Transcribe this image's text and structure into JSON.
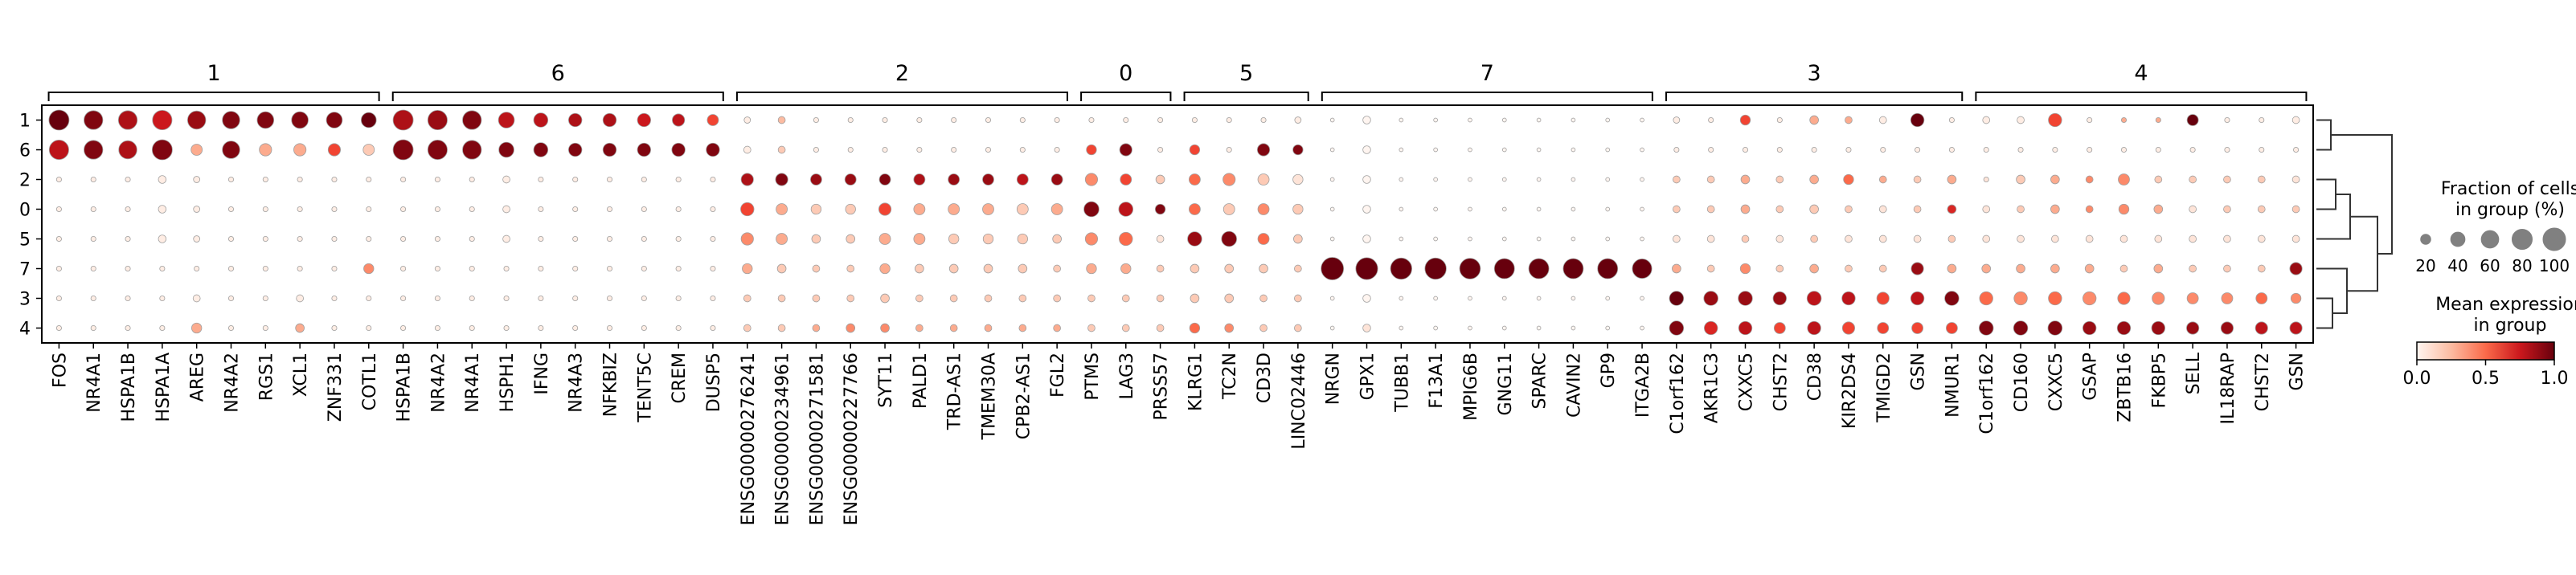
{
  "chart_data": {
    "type": "dotplot",
    "title": "",
    "rows": [
      "1",
      "6",
      "2",
      "0",
      "5",
      "7",
      "3",
      "4"
    ],
    "gene_groups": [
      {
        "label": "1",
        "genes": [
          "FOS",
          "NR4A1",
          "HSPA1B",
          "HSPA1A",
          "AREG",
          "NR4A2",
          "RGS1",
          "XCL1",
          "ZNF331",
          "COTL1"
        ]
      },
      {
        "label": "6",
        "genes": [
          "HSPA1B",
          "NR4A2",
          "NR4A1",
          "HSPH1",
          "IFNG",
          "NR4A3",
          "NFKBIZ",
          "TENT5C",
          "CREM",
          "DUSP5"
        ]
      },
      {
        "label": "2",
        "genes": [
          "ENSG00000276241",
          "ENSG00000234961",
          "ENSG00000271581",
          "ENSG00000227766",
          "SYT11",
          "PALD1",
          "TRD-AS1",
          "TMEM30A",
          "CPB2-AS1",
          "FGL2"
        ]
      },
      {
        "label": "0",
        "genes": [
          "PTMS",
          "LAG3",
          "PRSS57"
        ]
      },
      {
        "label": "5",
        "genes": [
          "KLRG1",
          "TC2N",
          "CD3D",
          "LINC02446"
        ]
      },
      {
        "label": "7",
        "genes": [
          "NRGN",
          "GPX1",
          "TUBB1",
          "F13A1",
          "MPIG6B",
          "GNG11",
          "SPARC",
          "CAVIN2",
          "GP9",
          "ITGA2B"
        ]
      },
      {
        "label": "3",
        "genes": [
          "C1orf162",
          "AKR1C3",
          "CXXC5",
          "CHST2",
          "CD38",
          "KIR2DS4",
          "TMIGD2",
          "GSN",
          "NMUR1"
        ]
      },
      {
        "label": "4",
        "genes": [
          "C1orf162",
          "CD160",
          "CXXC5",
          "GSAP",
          "ZBTB16",
          "FKBP5",
          "SELL",
          "IL18RAP",
          "CHST2",
          "GSN"
        ]
      }
    ],
    "fraction": [
      [
        80,
        70,
        70,
        75,
        65,
        60,
        55,
        55,
        50,
        45,
        80,
        75,
        70,
        50,
        40,
        35,
        35,
        35,
        30,
        25,
        8,
        10,
        5,
        5,
        5,
        5,
        5,
        5,
        5,
        5,
        5,
        5,
        5,
        5,
        5,
        5,
        8,
        3,
        12,
        3,
        3,
        3,
        3,
        3,
        3,
        3,
        3,
        8,
        5,
        20,
        5,
        15,
        10,
        10,
        35,
        5,
        10,
        10,
        35,
        5,
        5,
        5,
        25,
        5,
        5,
        10
      ],
      [
        75,
        70,
        65,
        80,
        25,
        60,
        30,
        30,
        30,
        25,
        80,
        75,
        70,
        45,
        40,
        35,
        35,
        35,
        35,
        35,
        10,
        10,
        5,
        5,
        5,
        5,
        5,
        5,
        5,
        5,
        20,
        30,
        5,
        20,
        5,
        30,
        20,
        3,
        12,
        3,
        3,
        3,
        3,
        3,
        3,
        3,
        3,
        5,
        5,
        5,
        5,
        5,
        5,
        5,
        5,
        5,
        5,
        5,
        5,
        5,
        5,
        5,
        5,
        5,
        5,
        5
      ],
      [
        5,
        5,
        5,
        12,
        8,
        5,
        5,
        5,
        5,
        5,
        5,
        5,
        5,
        10,
        5,
        5,
        5,
        5,
        5,
        5,
        30,
        30,
        25,
        25,
        25,
        25,
        25,
        25,
        25,
        25,
        30,
        25,
        15,
        25,
        30,
        25,
        20,
        3,
        12,
        3,
        3,
        3,
        3,
        3,
        3,
        3,
        3,
        10,
        10,
        15,
        10,
        15,
        20,
        10,
        10,
        15,
        5,
        15,
        15,
        10,
        25,
        10,
        10,
        10,
        10,
        10
      ],
      [
        5,
        5,
        5,
        12,
        8,
        5,
        5,
        5,
        5,
        5,
        5,
        5,
        5,
        10,
        5,
        5,
        5,
        5,
        5,
        5,
        35,
        25,
        20,
        20,
        30,
        25,
        25,
        25,
        25,
        25,
        45,
        40,
        20,
        25,
        25,
        25,
        20,
        3,
        12,
        3,
        3,
        3,
        3,
        3,
        3,
        3,
        3,
        10,
        10,
        15,
        10,
        15,
        10,
        10,
        10,
        15,
        10,
        10,
        15,
        10,
        20,
        15,
        10,
        10,
        10,
        10
      ],
      [
        5,
        5,
        5,
        12,
        8,
        5,
        5,
        5,
        5,
        5,
        5,
        5,
        5,
        10,
        5,
        5,
        5,
        5,
        5,
        5,
        30,
        25,
        15,
        15,
        25,
        25,
        20,
        20,
        20,
        15,
        30,
        35,
        10,
        40,
        45,
        25,
        15,
        3,
        12,
        3,
        3,
        3,
        3,
        3,
        3,
        3,
        3,
        10,
        10,
        10,
        10,
        10,
        10,
        10,
        10,
        10,
        10,
        10,
        10,
        10,
        10,
        10,
        10,
        10,
        10,
        10
      ],
      [
        5,
        5,
        5,
        5,
        5,
        5,
        5,
        5,
        5,
        20,
        5,
        5,
        5,
        5,
        5,
        5,
        5,
        5,
        5,
        5,
        20,
        15,
        10,
        10,
        20,
        15,
        15,
        15,
        15,
        10,
        20,
        20,
        10,
        15,
        15,
        15,
        10,
        100,
        95,
        90,
        90,
        85,
        80,
        80,
        80,
        80,
        75,
        15,
        10,
        20,
        10,
        15,
        10,
        10,
        30,
        15,
        15,
        15,
        15,
        15,
        10,
        15,
        10,
        10,
        10,
        30
      ],
      [
        5,
        5,
        5,
        5,
        10,
        5,
        5,
        10,
        5,
        5,
        5,
        5,
        5,
        5,
        5,
        5,
        5,
        5,
        5,
        5,
        10,
        10,
        10,
        10,
        15,
        10,
        10,
        10,
        10,
        10,
        10,
        10,
        10,
        15,
        15,
        10,
        10,
        3,
        12,
        3,
        3,
        3,
        3,
        3,
        3,
        3,
        3,
        40,
        40,
        40,
        35,
        40,
        35,
        30,
        35,
        40,
        35,
        35,
        35,
        35,
        30,
        30,
        25,
        25,
        25,
        20
      ],
      [
        5,
        5,
        5,
        5,
        20,
        5,
        5,
        15,
        5,
        5,
        5,
        5,
        5,
        5,
        5,
        5,
        5,
        5,
        5,
        5,
        10,
        10,
        10,
        15,
        15,
        10,
        10,
        10,
        10,
        10,
        10,
        10,
        10,
        20,
        15,
        10,
        10,
        3,
        12,
        3,
        3,
        3,
        3,
        3,
        3,
        3,
        3,
        40,
        35,
        35,
        25,
        35,
        30,
        25,
        25,
        25,
        40,
        40,
        40,
        35,
        35,
        35,
        30,
        30,
        30,
        30
      ]
    ],
    "expression": [
      [
        1.0,
        0.95,
        0.85,
        0.75,
        0.9,
        0.95,
        0.95,
        0.95,
        0.95,
        1.0,
        0.85,
        0.9,
        0.95,
        0.8,
        0.8,
        0.85,
        0.85,
        0.75,
        0.8,
        0.6,
        0.05,
        0.25,
        0.05,
        0.05,
        0.05,
        0.05,
        0.05,
        0.05,
        0.05,
        0.05,
        0.05,
        0.05,
        0.05,
        0.05,
        0.05,
        0.05,
        0.05,
        0.0,
        0.0,
        0.0,
        0.0,
        0.0,
        0.0,
        0.0,
        0.0,
        0.0,
        0.0,
        0.05,
        0.05,
        0.6,
        0.05,
        0.3,
        0.3,
        0.05,
        1.0,
        0.05,
        0.05,
        0.05,
        0.6,
        0.05,
        0.3,
        0.3,
        1.0,
        0.05,
        0.05,
        0.05
      ],
      [
        0.8,
        0.95,
        0.85,
        0.95,
        0.3,
        0.95,
        0.3,
        0.3,
        0.6,
        0.2,
        0.95,
        0.95,
        0.95,
        0.95,
        0.95,
        0.95,
        0.95,
        0.95,
        0.95,
        0.95,
        0.05,
        0.2,
        0.05,
        0.05,
        0.05,
        0.05,
        0.05,
        0.05,
        0.05,
        0.05,
        0.6,
        0.95,
        0.05,
        0.6,
        0.05,
        0.95,
        0.95,
        0.0,
        0.0,
        0.0,
        0.0,
        0.0,
        0.0,
        0.0,
        0.0,
        0.0,
        0.0,
        0.05,
        0.05,
        0.05,
        0.05,
        0.05,
        0.05,
        0.05,
        0.05,
        0.05,
        0.05,
        0.05,
        0.05,
        0.05,
        0.05,
        0.05,
        0.05,
        0.05,
        0.05,
        0.05
      ],
      [
        0.05,
        0.05,
        0.05,
        0.05,
        0.05,
        0.05,
        0.05,
        0.05,
        0.05,
        0.05,
        0.05,
        0.05,
        0.05,
        0.05,
        0.05,
        0.05,
        0.05,
        0.05,
        0.05,
        0.05,
        0.85,
        0.95,
        0.9,
        0.9,
        0.95,
        0.85,
        0.9,
        0.9,
        0.8,
        0.9,
        0.4,
        0.6,
        0.2,
        0.5,
        0.4,
        0.2,
        0.1,
        0.0,
        0.0,
        0.0,
        0.0,
        0.0,
        0.0,
        0.0,
        0.0,
        0.0,
        0.0,
        0.2,
        0.2,
        0.3,
        0.2,
        0.3,
        0.5,
        0.3,
        0.2,
        0.3,
        0.1,
        0.2,
        0.3,
        0.4,
        0.4,
        0.2,
        0.2,
        0.2,
        0.2,
        0.1
      ],
      [
        0.05,
        0.05,
        0.05,
        0.05,
        0.05,
        0.05,
        0.05,
        0.05,
        0.05,
        0.05,
        0.05,
        0.05,
        0.05,
        0.05,
        0.05,
        0.05,
        0.05,
        0.05,
        0.05,
        0.05,
        0.6,
        0.3,
        0.2,
        0.2,
        0.6,
        0.3,
        0.3,
        0.3,
        0.2,
        0.3,
        0.95,
        0.8,
        0.95,
        0.5,
        0.2,
        0.4,
        0.2,
        0.0,
        0.0,
        0.0,
        0.0,
        0.0,
        0.0,
        0.0,
        0.0,
        0.0,
        0.0,
        0.2,
        0.2,
        0.3,
        0.2,
        0.2,
        0.2,
        0.1,
        0.2,
        0.7,
        0.1,
        0.2,
        0.3,
        0.4,
        0.4,
        0.3,
        0.1,
        0.2,
        0.2,
        0.2
      ],
      [
        0.05,
        0.05,
        0.05,
        0.05,
        0.05,
        0.05,
        0.05,
        0.05,
        0.05,
        0.05,
        0.05,
        0.05,
        0.05,
        0.05,
        0.05,
        0.05,
        0.05,
        0.05,
        0.05,
        0.05,
        0.4,
        0.3,
        0.2,
        0.2,
        0.3,
        0.3,
        0.2,
        0.2,
        0.2,
        0.2,
        0.4,
        0.5,
        0.1,
        0.9,
        0.95,
        0.5,
        0.2,
        0.0,
        0.0,
        0.0,
        0.0,
        0.0,
        0.0,
        0.0,
        0.0,
        0.0,
        0.0,
        0.1,
        0.1,
        0.2,
        0.1,
        0.2,
        0.1,
        0.1,
        0.1,
        0.2,
        0.1,
        0.1,
        0.1,
        0.1,
        0.1,
        0.1,
        0.1,
        0.1,
        0.1,
        0.1
      ],
      [
        0.05,
        0.05,
        0.05,
        0.05,
        0.05,
        0.05,
        0.05,
        0.05,
        0.05,
        0.4,
        0.05,
        0.05,
        0.05,
        0.05,
        0.05,
        0.05,
        0.05,
        0.05,
        0.05,
        0.05,
        0.3,
        0.2,
        0.2,
        0.2,
        0.3,
        0.2,
        0.2,
        0.2,
        0.2,
        0.2,
        0.3,
        0.3,
        0.2,
        0.2,
        0.2,
        0.2,
        0.2,
        1.0,
        1.0,
        1.0,
        1.0,
        1.0,
        1.0,
        1.0,
        1.0,
        1.0,
        1.0,
        0.3,
        0.2,
        0.4,
        0.2,
        0.3,
        0.2,
        0.2,
        0.9,
        0.3,
        0.3,
        0.3,
        0.3,
        0.3,
        0.2,
        0.3,
        0.2,
        0.2,
        0.2,
        0.9
      ],
      [
        0.05,
        0.05,
        0.05,
        0.05,
        0.05,
        0.05,
        0.05,
        0.05,
        0.05,
        0.05,
        0.05,
        0.05,
        0.05,
        0.05,
        0.05,
        0.05,
        0.05,
        0.05,
        0.05,
        0.05,
        0.2,
        0.2,
        0.2,
        0.2,
        0.2,
        0.2,
        0.2,
        0.2,
        0.2,
        0.2,
        0.2,
        0.2,
        0.2,
        0.2,
        0.2,
        0.2,
        0.2,
        0.0,
        0.0,
        0.0,
        0.0,
        0.0,
        0.0,
        0.0,
        0.0,
        0.0,
        0.0,
        1.0,
        0.9,
        0.9,
        0.9,
        0.8,
        0.8,
        0.6,
        0.8,
        0.95,
        0.5,
        0.4,
        0.5,
        0.4,
        0.5,
        0.4,
        0.4,
        0.4,
        0.5,
        0.4
      ],
      [
        0.05,
        0.05,
        0.05,
        0.05,
        0.3,
        0.05,
        0.05,
        0.3,
        0.05,
        0.05,
        0.05,
        0.05,
        0.05,
        0.05,
        0.05,
        0.05,
        0.05,
        0.05,
        0.05,
        0.05,
        0.2,
        0.2,
        0.3,
        0.4,
        0.4,
        0.3,
        0.3,
        0.3,
        0.3,
        0.3,
        0.2,
        0.2,
        0.2,
        0.5,
        0.4,
        0.2,
        0.2,
        0.0,
        0.1,
        0.0,
        0.0,
        0.0,
        0.0,
        0.0,
        0.0,
        0.0,
        0.0,
        0.95,
        0.7,
        0.8,
        0.6,
        0.8,
        0.6,
        0.6,
        0.6,
        0.6,
        0.95,
        0.95,
        0.95,
        0.9,
        0.9,
        0.9,
        0.9,
        0.9,
        0.8,
        0.8
      ]
    ],
    "legend": {
      "size_title": "Fraction of cells\nin group (%)",
      "size_ticks": [
        20,
        40,
        60,
        80,
        100
      ],
      "color_title": "Mean expression\nin group",
      "color_ticks": [
        "0.0",
        "0.5",
        "1.0"
      ],
      "colormap": "Reds"
    },
    "dendrogram": "right",
    "colors": {
      "low": "#fff5f0",
      "mid": "#fb6a4a",
      "high": "#67000d",
      "edge": "#a0a0a0"
    }
  }
}
